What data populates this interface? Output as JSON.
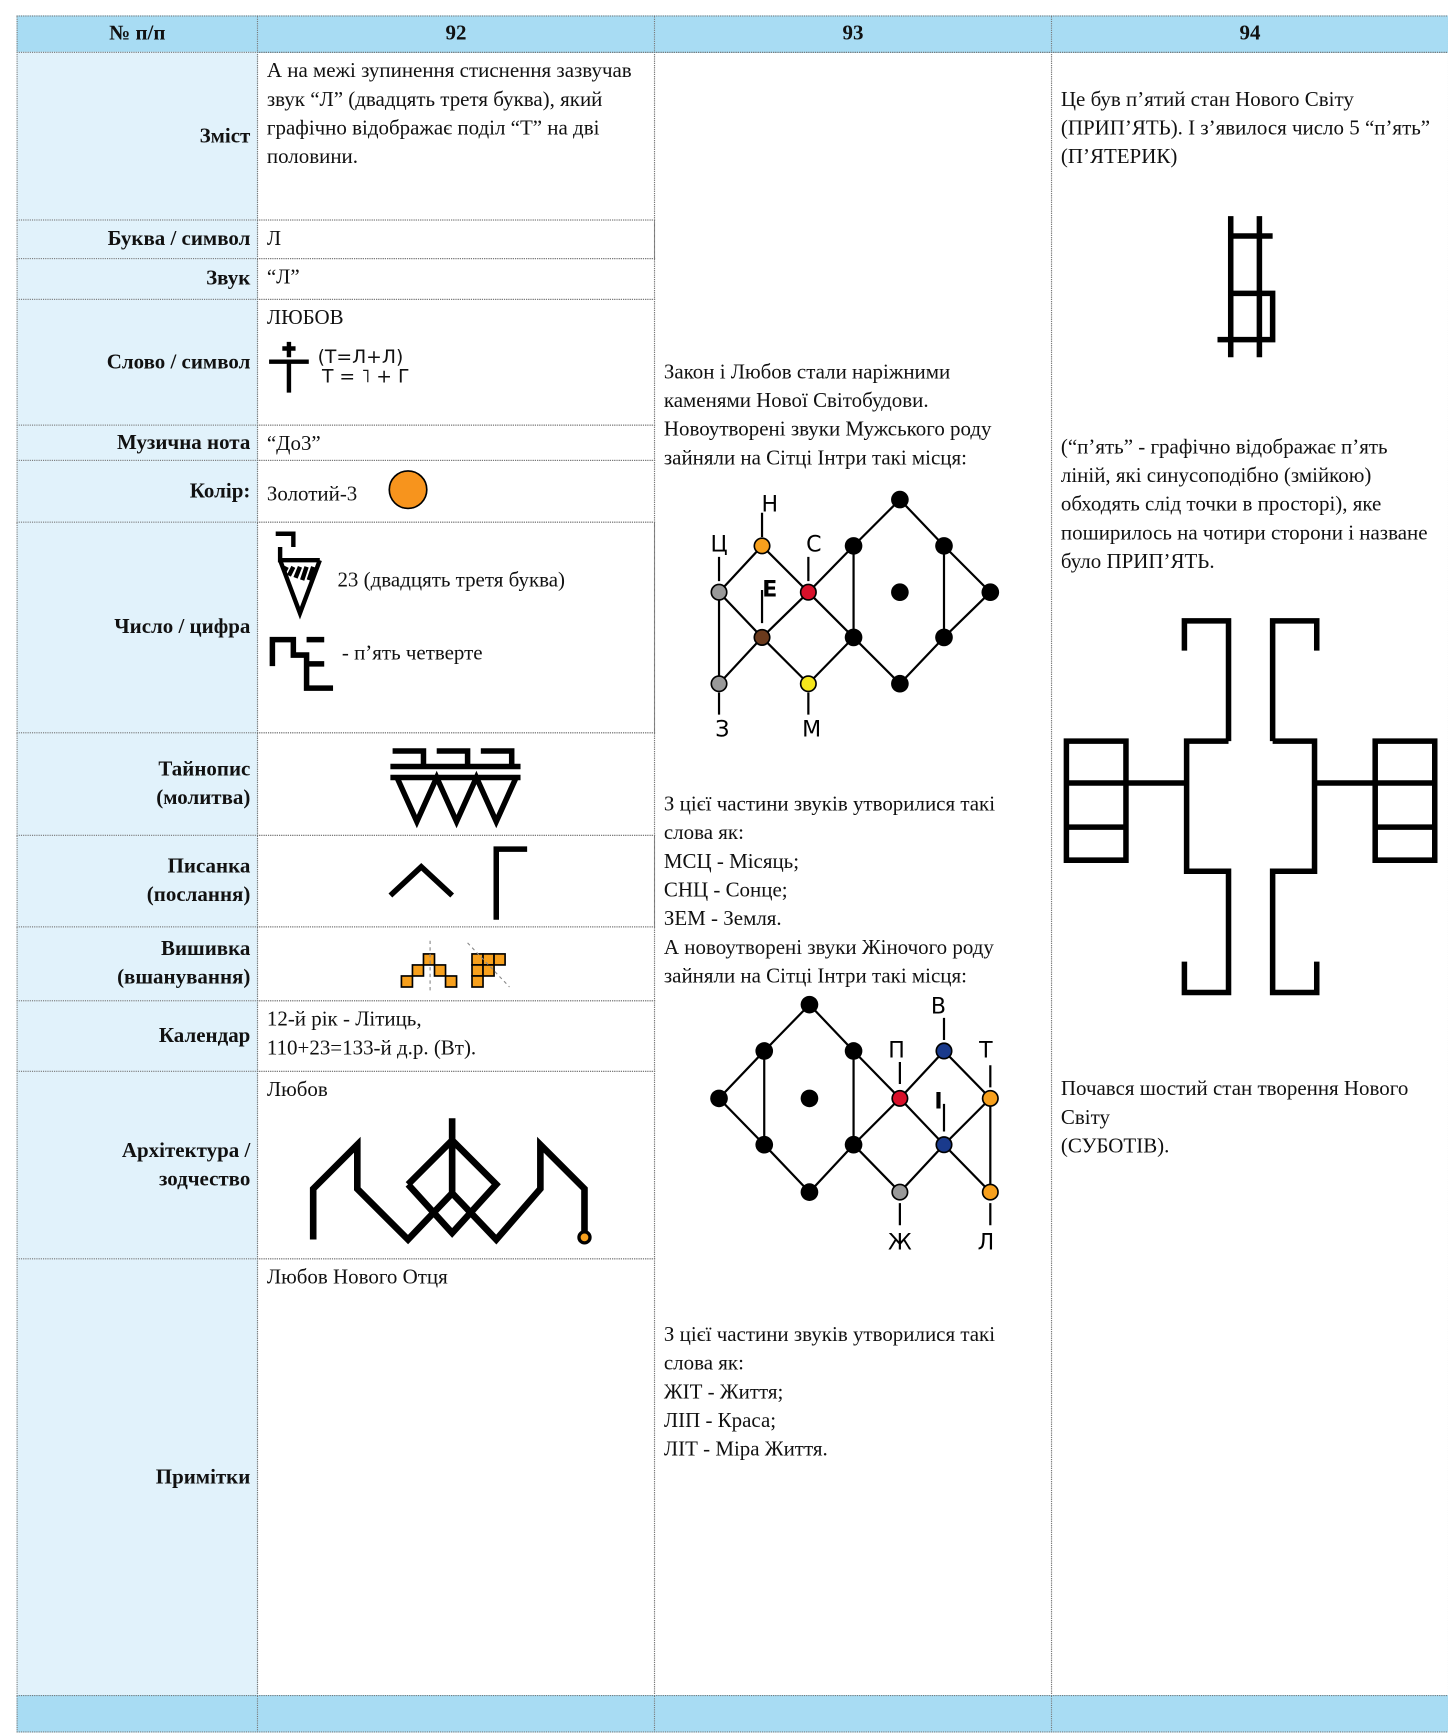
{
  "header": [
    "№ п/п",
    "92",
    "93",
    "94"
  ],
  "rows": [
    {
      "label": "Зміст",
      "content": "А на межі зупинення стиснення зазвучав звук “Л” (двадцять третя буква), який графічно відображає поділ “Т” на дві половини."
    },
    {
      "label": "Буква / символ",
      "content": "Л"
    },
    {
      "label": "Звук",
      "content": "“Л”"
    },
    {
      "label": "Слово / символ",
      "content": "ЛЮБОВ",
      "formula": "(Т=Л+Л)",
      "formula2": "Т = ˥ + Г"
    },
    {
      "label": "Музична нота",
      "content": "“До3”"
    },
    {
      "label": "Колір:",
      "content": "Золотий-3"
    },
    {
      "label": "Число / цифра",
      "content": "23 (двадцять третя буква)",
      "content2": "- п’ять четверте"
    },
    {
      "label": "Тайнопис\n(молитва)"
    },
    {
      "label": "Писанка\n(послання)"
    },
    {
      "label": "Вишивка\n(вшанування)"
    },
    {
      "label": "Календар",
      "content": "12-й рік - Літиць,\n110+23=133-й д.р. (Вт)."
    },
    {
      "label": "Архітектура /\nзодчество",
      "content": "Любов"
    },
    {
      "label": "Примітки",
      "content": "Любов Нового Отця"
    }
  ],
  "col93": {
    "intro": "Закон і Любов стали наріжними каменями Нової Світобудови. Новоутворені звуки Мужського роду зайняли на Сітці Інтри такі місця:",
    "male_labels": [
      "Ц",
      "Н",
      "С",
      "Е",
      "З",
      "М"
    ],
    "middle": "З цієї частини звуків утворилися такі слова як:\nМСЦ - Місяць;\nСНЦ - Сонце;\nЗЕМ - Земля.\nА новоутворені звуки Жіночого роду зайняли на Сітці Інтри такі місця:",
    "female_labels": [
      "П",
      "В",
      "Т",
      "І",
      "Ж",
      "Л"
    ],
    "end": "З цієї частини звуків утворилися такі слова як:\nЖІТ - Життя;\nЛІП - Краса;\nЛІТ - Міра Життя."
  },
  "col94": {
    "p1": "Це був п’ятий стан Нового Світу (ПРИП’ЯТЬ). І з’явилося число 5 “п’ять”\n(П’ЯТЕРИК)",
    "p2": "(“п’ять” - графічно відображає п’ять ліній, які синусоподібно (змійкою) обходять слід точки в просторі), яке поширилось на чотири сторони і назване було ПРИП’ЯТЬ.",
    "p3": "Почався шостий стан творення Нового Світу\n(СУБОТІВ)."
  }
}
